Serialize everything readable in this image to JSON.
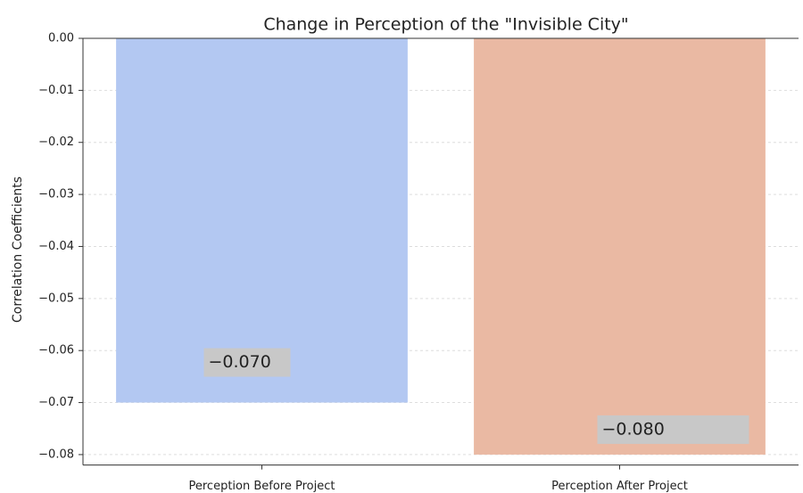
{
  "chart_data": {
    "type": "bar",
    "title": "Change in Perception of the \"Invisible City\"",
    "ylabel": "Correlation Coefficients",
    "categories": [
      "Perception Before Project",
      "Perception After Project"
    ],
    "values": [
      -0.07,
      -0.08
    ],
    "value_labels": [
      "−0.070",
      "−0.080"
    ],
    "colors": [
      "#b3c8f2",
      "#eab9a3"
    ],
    "ylim": [
      -0.082,
      0
    ],
    "yticks": [
      {
        "value": 0,
        "label": "0.00"
      },
      {
        "value": -0.01,
        "label": "−0.01"
      },
      {
        "value": -0.02,
        "label": "−0.02"
      },
      {
        "value": -0.03,
        "label": "−0.03"
      },
      {
        "value": -0.04,
        "label": "−0.04"
      },
      {
        "value": -0.05,
        "label": "−0.05"
      },
      {
        "value": -0.06,
        "label": "−0.06"
      },
      {
        "value": -0.07,
        "label": "−0.07"
      },
      {
        "value": -0.08,
        "label": "−0.08"
      }
    ],
    "grid": true
  }
}
